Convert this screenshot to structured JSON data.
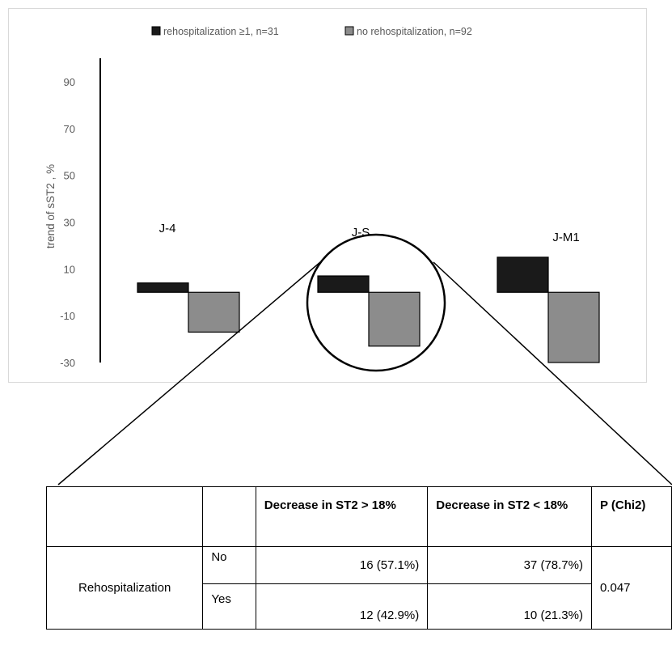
{
  "chart_data": {
    "type": "bar",
    "title": "",
    "xlabel": "",
    "ylabel": "trend of sST2 , %",
    "ylim": [
      -30,
      100
    ],
    "yticks": [
      90,
      70,
      50,
      30,
      10,
      -10,
      -30
    ],
    "categories": [
      "J-4",
      "J-S",
      "J-M1"
    ],
    "series": [
      {
        "name": "rehospitalization ≥1, n=31",
        "values": [
          4,
          7,
          15
        ],
        "color": "#1a1a1a"
      },
      {
        "name": "no rehospitalization, n=92",
        "values": [
          -17,
          -23,
          -30
        ],
        "color": "#8c8c8c"
      }
    ],
    "legend_position": "top",
    "grid": false
  },
  "table": {
    "headers": [
      "",
      "",
      "Decrease in ST2 > 18%",
      "Decrease in ST2 < 18%",
      "P (Chi2)"
    ],
    "row_label": "Rehospitalization",
    "rows": [
      {
        "group": "No",
        "gt18": "16 (57.1%)",
        "lt18": "37 (78.7%)"
      },
      {
        "group": "Yes",
        "gt18": "12 (42.9%)",
        "lt18": "10 (21.3%)"
      }
    ],
    "p_value": "0.047"
  },
  "colors": {
    "dark_bar": "#1a1a1a",
    "gray_bar": "#8c8c8c",
    "axis": "#000000"
  }
}
